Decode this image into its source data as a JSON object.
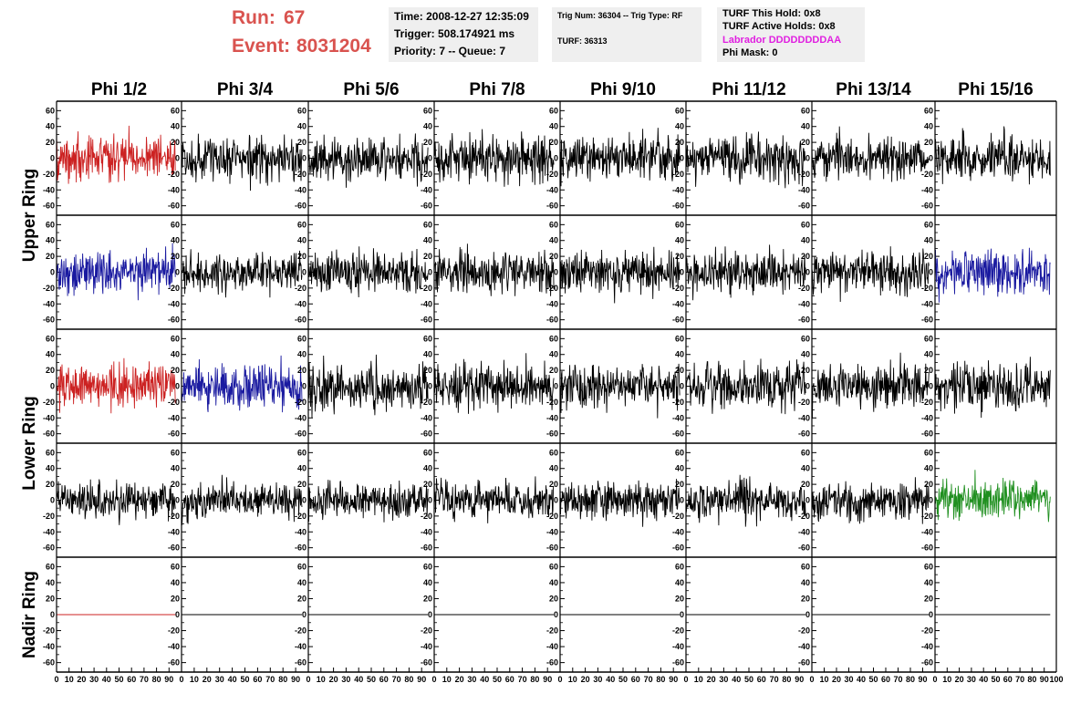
{
  "header": {
    "run_label": "Run:",
    "run_value": "67",
    "event_label": "Event:",
    "event_value": "8031204",
    "run_color": "#d9534f"
  },
  "time_box": {
    "time": "Time: 2008-12-27 12:35:09",
    "trigger": "Trigger: 508.174921 ms",
    "priority": "Priority: 7 -- Queue: 7"
  },
  "trig_box": {
    "trig": "Trig Num: 36304 -- Trig Type: RF",
    "turf": "TURF: 36313"
  },
  "turf_box": {
    "this_hold": "TURF This Hold: 0x8",
    "active_holds": "TURF Active Holds: 0x8",
    "labrador": "Labrador DDDDDDDDAA",
    "labrador_color": "#e020e0",
    "phi_mask": "Phi Mask: 0"
  },
  "chart_data": {
    "type": "line",
    "columns": [
      "Phi 1/2",
      "Phi 3/4",
      "Phi 5/6",
      "Phi 7/8",
      "Phi 9/10",
      "Phi 11/12",
      "Phi 13/14",
      "Phi 15/16"
    ],
    "ring_labels": [
      "Upper Ring",
      "Lower Ring",
      "Nadir Ring"
    ],
    "ring_rows": [
      [
        0,
        1
      ],
      [
        2,
        3
      ],
      [
        4,
        4
      ]
    ],
    "ylim": [
      -65,
      65
    ],
    "yticks": [
      -60,
      -40,
      -20,
      0,
      20,
      40,
      60
    ],
    "xlim": [
      0,
      100
    ],
    "xticks": [
      0,
      10,
      20,
      30,
      40,
      50,
      60,
      70,
      80,
      90,
      100
    ],
    "samples_per_trace": 260,
    "trace_x_max": 95,
    "row_amplitudes": [
      14,
      13,
      14,
      12,
      0
    ],
    "colors": {
      "black": "#000000",
      "red": "#cc2222",
      "blue": "#1a1aa0",
      "green": "#1f8f1f"
    },
    "trace_colors": [
      [
        "red",
        "black",
        "black",
        "black",
        "black",
        "black",
        "black",
        "black"
      ],
      [
        "blue",
        "black",
        "black",
        "black",
        "black",
        "black",
        "black",
        "blue"
      ],
      [
        "red",
        "blue",
        "black",
        "black",
        "black",
        "black",
        "black",
        "black"
      ],
      [
        "black",
        "black",
        "black",
        "black",
        "black",
        "black",
        "black",
        "green"
      ],
      [
        "red",
        "black",
        "black",
        "black",
        "black",
        "black",
        "black",
        "black"
      ]
    ]
  }
}
